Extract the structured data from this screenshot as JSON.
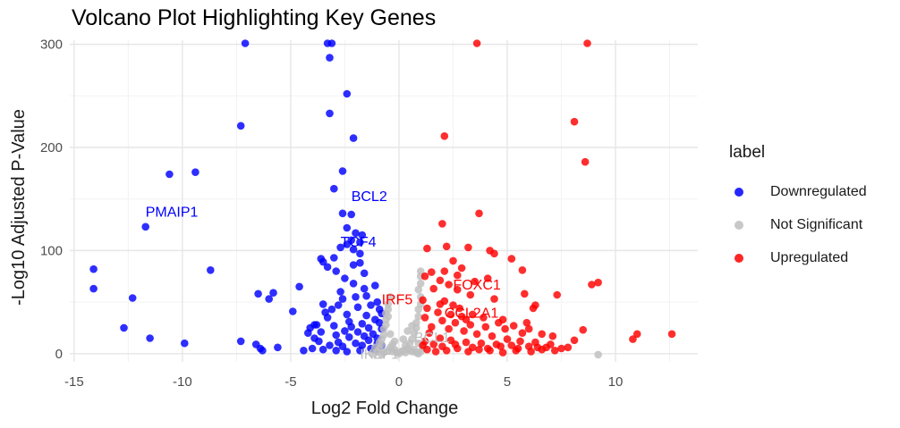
{
  "chart_data": {
    "type": "scatter",
    "title": "Volcano Plot Highlighting Key Genes",
    "xlabel": "Log2 Fold Change",
    "ylabel": "-Log10 Adjusted P-Value",
    "xlim": [
      -15.2,
      13.8
    ],
    "ylim": [
      -8,
      304
    ],
    "x_ticks": [
      -15,
      -10,
      -5,
      0,
      5,
      10
    ],
    "y_ticks": [
      0,
      100,
      200,
      300
    ],
    "grid": true,
    "legend": {
      "title": "label",
      "placement": "right",
      "entries": [
        "Downregulated",
        "Not Significant",
        "Upregulated"
      ]
    },
    "colors": {
      "Downregulated": "#0000ff",
      "Not Significant": "#bebebe",
      "Upregulated": "#ff0000"
    },
    "series": [
      {
        "name": "Downregulated",
        "points": [
          [
            -14.1,
            82
          ],
          [
            -14.1,
            63
          ],
          [
            -12.3,
            54
          ],
          [
            -12.7,
            25
          ],
          [
            -11.5,
            15
          ],
          [
            -11.7,
            123
          ],
          [
            -10.6,
            174
          ],
          [
            -9.4,
            176
          ],
          [
            -9.9,
            10
          ],
          [
            -8.7,
            81
          ],
          [
            -7.3,
            221
          ],
          [
            -7.1,
            301
          ],
          [
            -7.3,
            12
          ],
          [
            -6.6,
            9
          ],
          [
            -6.4,
            5
          ],
          [
            -6.3,
            3
          ],
          [
            -6.5,
            58
          ],
          [
            -6.0,
            53
          ],
          [
            -5.8,
            59
          ],
          [
            -5.6,
            6
          ],
          [
            -4.9,
            41
          ],
          [
            -4.6,
            65
          ],
          [
            -4.4,
            3
          ],
          [
            -4.2,
            20
          ],
          [
            -4.1,
            25
          ],
          [
            -3.9,
            28
          ],
          [
            -3.3,
            301
          ],
          [
            -3.1,
            301
          ],
          [
            -3.2,
            287
          ],
          [
            -3.2,
            233
          ],
          [
            -2.4,
            252
          ],
          [
            -2.1,
            209
          ],
          [
            -2.6,
            177
          ],
          [
            -3.0,
            160
          ],
          [
            -2.6,
            136
          ],
          [
            -2.2,
            135
          ],
          [
            -2.4,
            122
          ],
          [
            -2.0,
            117
          ],
          [
            -1.7,
            115
          ],
          [
            -2.2,
            110
          ],
          [
            -1.8,
            108
          ],
          [
            -2.4,
            106
          ],
          [
            -2.7,
            103
          ],
          [
            -2.1,
            101
          ],
          [
            -1.8,
            97
          ],
          [
            -3.0,
            93
          ],
          [
            -3.5,
            89
          ],
          [
            -3.3,
            84
          ],
          [
            -2.9,
            80
          ],
          [
            -3.6,
            92
          ],
          [
            -2.1,
            86
          ],
          [
            -1.8,
            88
          ],
          [
            -1.6,
            78
          ],
          [
            -2.5,
            73
          ],
          [
            -2.1,
            68
          ],
          [
            -2.0,
            55
          ],
          [
            -1.5,
            56
          ],
          [
            -2.6,
            53
          ],
          [
            -3.5,
            48
          ],
          [
            -3.4,
            40
          ],
          [
            -3.1,
            43
          ],
          [
            -2.8,
            47
          ],
          [
            -1.9,
            45
          ],
          [
            -1.3,
            47
          ],
          [
            -2.4,
            38
          ],
          [
            -1.1,
            33
          ],
          [
            -3.8,
            28
          ],
          [
            -3.0,
            27
          ],
          [
            -2.2,
            26
          ],
          [
            -3.9,
            15
          ],
          [
            -3.7,
            12
          ],
          [
            -3.2,
            8
          ],
          [
            -2.6,
            7
          ],
          [
            -2.0,
            10
          ],
          [
            -1.6,
            17
          ],
          [
            -1.4,
            13
          ],
          [
            -1.2,
            19
          ],
          [
            -0.9,
            30
          ],
          [
            -0.8,
            39
          ],
          [
            -0.8,
            24
          ],
          [
            -1.0,
            10
          ],
          [
            -1.3,
            5
          ],
          [
            -1.8,
            3
          ],
          [
            -2.4,
            2
          ],
          [
            -2.9,
            3
          ],
          [
            -3.5,
            4
          ],
          [
            -4.0,
            5
          ],
          [
            -1.1,
            66
          ],
          [
            -1.6,
            63
          ],
          [
            -1.0,
            50
          ],
          [
            -0.9,
            43
          ],
          [
            -2.7,
            60
          ],
          [
            -3.3,
            35
          ],
          [
            -2.3,
            31
          ],
          [
            -1.5,
            37
          ],
          [
            -1.7,
            29
          ],
          [
            -2.9,
            18
          ],
          [
            -2.3,
            16
          ],
          [
            -1.9,
            21
          ],
          [
            -1.0,
            15
          ],
          [
            -0.8,
            8
          ],
          [
            -1.4,
            25
          ],
          [
            -2.5,
            22
          ],
          [
            -3.6,
            21
          ],
          [
            -2.8,
            11
          ],
          [
            -1.7,
            8
          ],
          [
            -1.1,
            4
          ]
        ]
      },
      {
        "name": "Not Significant",
        "points": [
          [
            -1.2,
            0
          ],
          [
            -1.0,
            2
          ],
          [
            -0.9,
            5
          ],
          [
            -0.8,
            9
          ],
          [
            -0.8,
            14
          ],
          [
            -0.7,
            18
          ],
          [
            -0.7,
            24
          ],
          [
            -0.6,
            28
          ],
          [
            -0.6,
            33
          ],
          [
            -0.6,
            39
          ],
          [
            -0.5,
            43
          ],
          [
            -0.5,
            48
          ],
          [
            -0.4,
            55
          ],
          [
            -0.7,
            1
          ],
          [
            -0.5,
            3
          ],
          [
            -0.4,
            6
          ],
          [
            -0.3,
            2
          ],
          [
            -0.2,
            4
          ],
          [
            -0.1,
            1
          ],
          [
            0.0,
            0
          ],
          [
            0.1,
            2
          ],
          [
            0.2,
            3
          ],
          [
            0.3,
            1
          ],
          [
            0.4,
            5
          ],
          [
            0.5,
            3
          ],
          [
            0.6,
            2
          ],
          [
            0.7,
            4
          ],
          [
            0.8,
            1
          ],
          [
            0.9,
            0
          ],
          [
            1.0,
            2
          ],
          [
            -0.3,
            9
          ],
          [
            0.3,
            8
          ],
          [
            -0.2,
            12
          ],
          [
            0.2,
            14
          ],
          [
            0.5,
            10
          ],
          [
            0.6,
            14
          ],
          [
            0.7,
            20
          ],
          [
            0.8,
            25
          ],
          [
            0.8,
            30
          ],
          [
            0.9,
            36
          ],
          [
            0.9,
            43
          ],
          [
            1.0,
            48
          ],
          [
            1.0,
            55
          ],
          [
            0.9,
            62
          ],
          [
            1.0,
            68
          ],
          [
            1.0,
            75
          ],
          [
            1.0,
            80
          ],
          [
            -0.9,
            11
          ],
          [
            -1.1,
            6
          ],
          [
            0.4,
            22
          ],
          [
            -0.4,
            19
          ],
          [
            0.6,
            27
          ],
          [
            -0.5,
            36
          ],
          [
            0.9,
            10
          ],
          [
            1.1,
            6
          ],
          [
            -0.8,
            -1
          ],
          [
            9.2,
            -1
          ]
        ]
      },
      {
        "name": "Upregulated",
        "points": [
          [
            3.6,
            301
          ],
          [
            8.7,
            301
          ],
          [
            8.1,
            225
          ],
          [
            2.1,
            211
          ],
          [
            8.6,
            186
          ],
          [
            3.7,
            136
          ],
          [
            2.0,
            126
          ],
          [
            1.3,
            102
          ],
          [
            2.2,
            104
          ],
          [
            3.2,
            103
          ],
          [
            4.2,
            100
          ],
          [
            4.4,
            97
          ],
          [
            5.2,
            92
          ],
          [
            2.5,
            90
          ],
          [
            2.9,
            83
          ],
          [
            5.7,
            81
          ],
          [
            1.5,
            79
          ],
          [
            2.1,
            80
          ],
          [
            1.2,
            75
          ],
          [
            2.7,
            76
          ],
          [
            1.9,
            71
          ],
          [
            3.5,
            70
          ],
          [
            4.1,
            73
          ],
          [
            2.3,
            67
          ],
          [
            8.9,
            67
          ],
          [
            9.2,
            69
          ],
          [
            1.6,
            63
          ],
          [
            2.7,
            62
          ],
          [
            3.3,
            57
          ],
          [
            5.8,
            58
          ],
          [
            7.3,
            57
          ],
          [
            1.1,
            52
          ],
          [
            2.1,
            51
          ],
          [
            4.4,
            53
          ],
          [
            2.5,
            47
          ],
          [
            6.3,
            47
          ],
          [
            6.2,
            44
          ],
          [
            1.3,
            44
          ],
          [
            1.8,
            40
          ],
          [
            2.9,
            36
          ],
          [
            3.4,
            38
          ],
          [
            4.8,
            33
          ],
          [
            5.9,
            30
          ],
          [
            1.2,
            35
          ],
          [
            2.0,
            32
          ],
          [
            2.6,
            30
          ],
          [
            3.3,
            28
          ],
          [
            4.0,
            26
          ],
          [
            4.9,
            24
          ],
          [
            5.7,
            20
          ],
          [
            6.6,
            19
          ],
          [
            7.1,
            17
          ],
          [
            8.1,
            13
          ],
          [
            8.5,
            23
          ],
          [
            11.0,
            19
          ],
          [
            10.8,
            14
          ],
          [
            12.6,
            19
          ],
          [
            1.4,
            20
          ],
          [
            1.9,
            15
          ],
          [
            2.4,
            13
          ],
          [
            3.1,
            11
          ],
          [
            3.8,
            10
          ],
          [
            4.5,
            9
          ],
          [
            5.2,
            8
          ],
          [
            6.0,
            7
          ],
          [
            6.8,
            6
          ],
          [
            7.5,
            5
          ],
          [
            7.8,
            6
          ],
          [
            1.1,
            8
          ],
          [
            1.3,
            4
          ],
          [
            1.7,
            2
          ],
          [
            2.2,
            3
          ],
          [
            2.7,
            5
          ],
          [
            3.2,
            2
          ],
          [
            3.7,
            4
          ],
          [
            4.2,
            3
          ],
          [
            4.8,
            1
          ],
          [
            5.4,
            3
          ],
          [
            6.1,
            2
          ],
          [
            6.6,
            4
          ],
          [
            7.2,
            3
          ],
          [
            1.5,
            26
          ],
          [
            2.3,
            24
          ],
          [
            3.0,
            22
          ],
          [
            3.6,
            19
          ],
          [
            4.3,
            17
          ],
          [
            5.0,
            14
          ],
          [
            5.6,
            12
          ],
          [
            6.3,
            11
          ],
          [
            1.2,
            12
          ],
          [
            1.6,
            9
          ],
          [
            2.0,
            7
          ],
          [
            2.6,
            9
          ],
          [
            3.4,
            6
          ],
          [
            4.1,
            5
          ],
          [
            4.7,
            7
          ],
          [
            5.5,
            5
          ],
          [
            6.4,
            6
          ],
          [
            7.0,
            9
          ],
          [
            1.9,
            48
          ],
          [
            2.8,
            44
          ],
          [
            3.9,
            35
          ],
          [
            4.6,
            30
          ],
          [
            5.3,
            27
          ],
          [
            6.0,
            24
          ],
          [
            2.4,
            38
          ],
          [
            3.1,
            33
          ]
        ]
      }
    ],
    "annotations": [
      {
        "text": "PMAIP1",
        "x": -11.7,
        "y": 133,
        "label": "Downregulated"
      },
      {
        "text": "BCL2",
        "x": -2.2,
        "y": 148,
        "label": "Downregulated"
      },
      {
        "text": "TCF4",
        "x": -2.7,
        "y": 104,
        "label": "Downregulated"
      },
      {
        "text": "IKZF1",
        "x": -1.8,
        "y": -5,
        "label": "Not Significant"
      },
      {
        "text": "BCL1",
        "x": 0.7,
        "y": 11,
        "label": "Not Significant"
      },
      {
        "text": "IRF5",
        "x": -0.8,
        "y": 48,
        "label": "Upregulated"
      },
      {
        "text": "FOXC1",
        "x": 2.5,
        "y": 62,
        "label": "Upregulated"
      },
      {
        "text": "CCL2A1",
        "x": 2.1,
        "y": 35,
        "label": "Upregulated"
      }
    ]
  }
}
